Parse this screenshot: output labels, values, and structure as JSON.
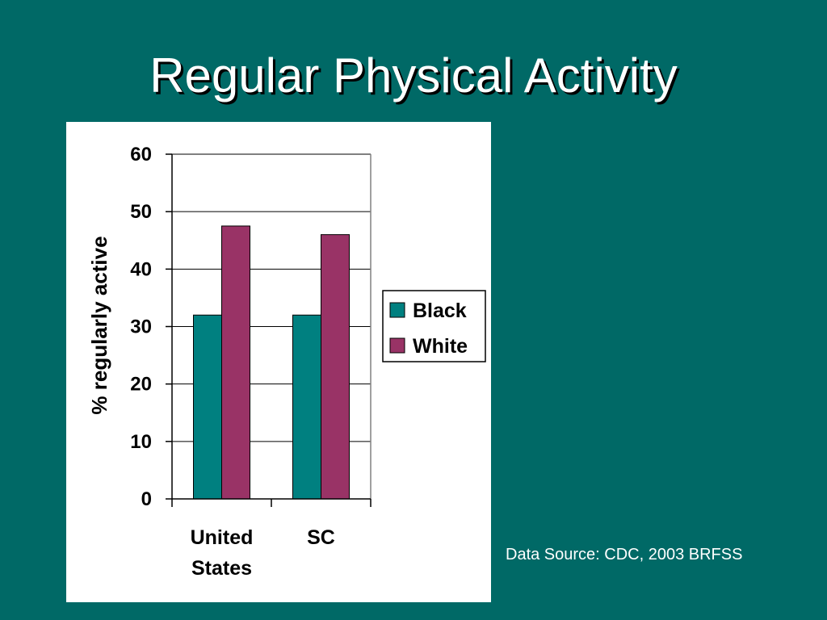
{
  "slide": {
    "title": "Regular Physical Activity",
    "source_note": "Data Source: CDC, 2003 BRFSS",
    "background_color": "#006966"
  },
  "chart_data": {
    "type": "bar",
    "title": "",
    "xlabel": "",
    "ylabel": "% regularly active",
    "ylim": [
      0,
      60
    ],
    "yticks": [
      "0",
      "10",
      "20",
      "30",
      "40",
      "50",
      "60"
    ],
    "categories": [
      [
        "United",
        "States"
      ],
      [
        "SC"
      ]
    ],
    "series": [
      {
        "name": "Black",
        "color": "#008080",
        "values": [
          32,
          32
        ]
      },
      {
        "name": "White",
        "color": "#993366",
        "values": [
          47.5,
          46
        ]
      }
    ],
    "grid": true,
    "legend_position": "right"
  }
}
